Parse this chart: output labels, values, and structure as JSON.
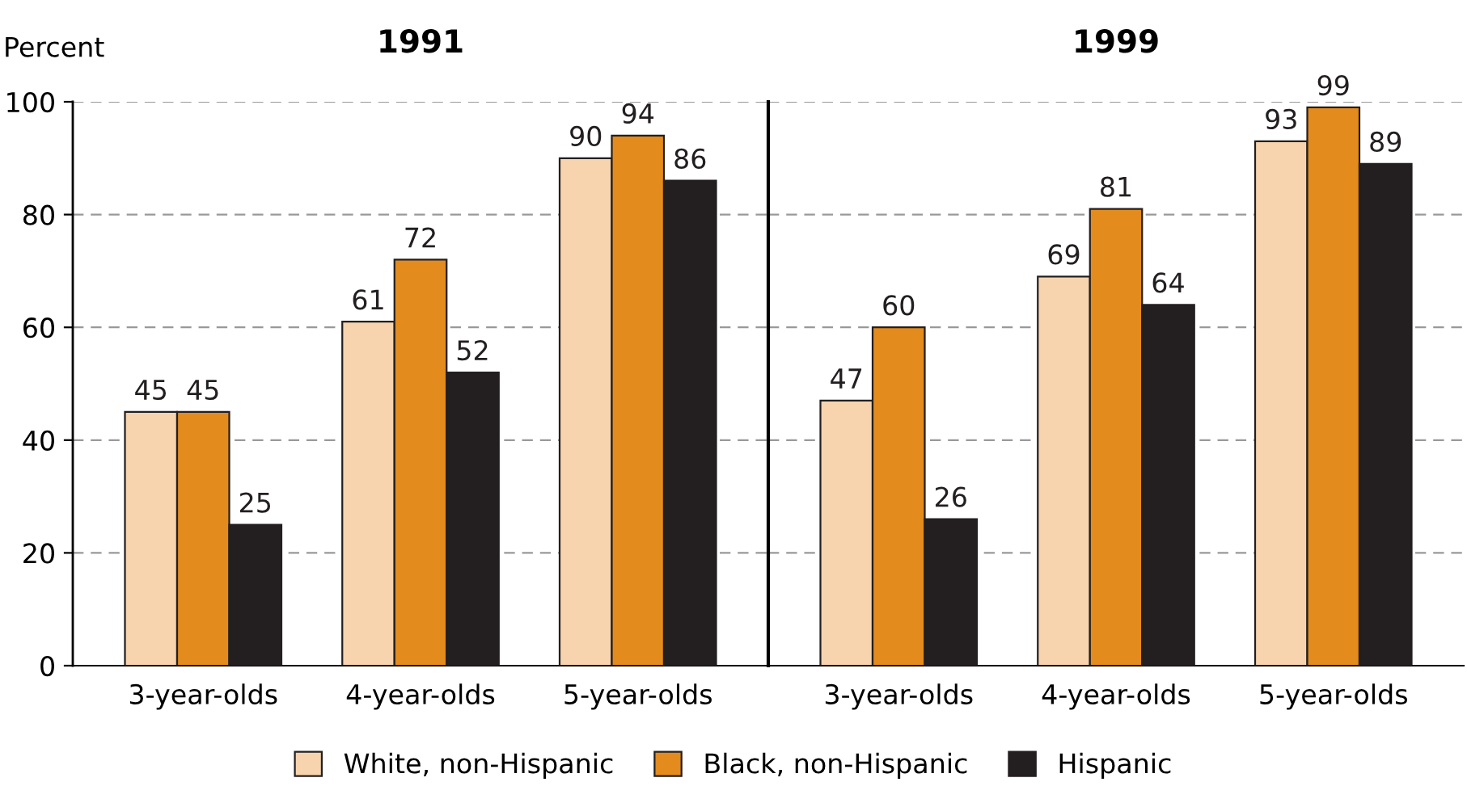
{
  "chart_data": [
    {
      "type": "bar",
      "title": "1991",
      "ylabel": "Percent",
      "categories": [
        "3-year-olds",
        "4-year-olds",
        "5-year-olds"
      ],
      "series": [
        {
          "name": "White, non-Hispanic",
          "color": "#f7d4ae",
          "values": [
            45,
            61,
            90
          ]
        },
        {
          "name": "Black, non-Hispanic",
          "color": "#e38b1c",
          "values": [
            45,
            72,
            94
          ]
        },
        {
          "name": "Hispanic",
          "color": "#231f20",
          "values": [
            25,
            52,
            86
          ]
        }
      ],
      "ylim": [
        0,
        100
      ],
      "yticks": [
        0,
        20,
        40,
        60,
        80,
        100
      ],
      "grid": "y",
      "data_labels": true,
      "legend": "bottom"
    },
    {
      "type": "bar",
      "title": "1999",
      "categories": [
        "3-year-olds",
        "4-year-olds",
        "5-year-olds"
      ],
      "series": [
        {
          "color": "#f7d4ae",
          "values": [
            47,
            69,
            93
          ]
        },
        {
          "color": "#e38b1c",
          "values": [
            60,
            81,
            99
          ]
        },
        {
          "color": "#231f20",
          "values": [
            26,
            64,
            89
          ]
        }
      ],
      "ylim": [
        0,
        100
      ],
      "yticks": [
        0,
        20,
        40,
        60,
        80,
        100
      ],
      "grid": "y",
      "data_labels": true,
      "tick_labels": "x"
    }
  ]
}
